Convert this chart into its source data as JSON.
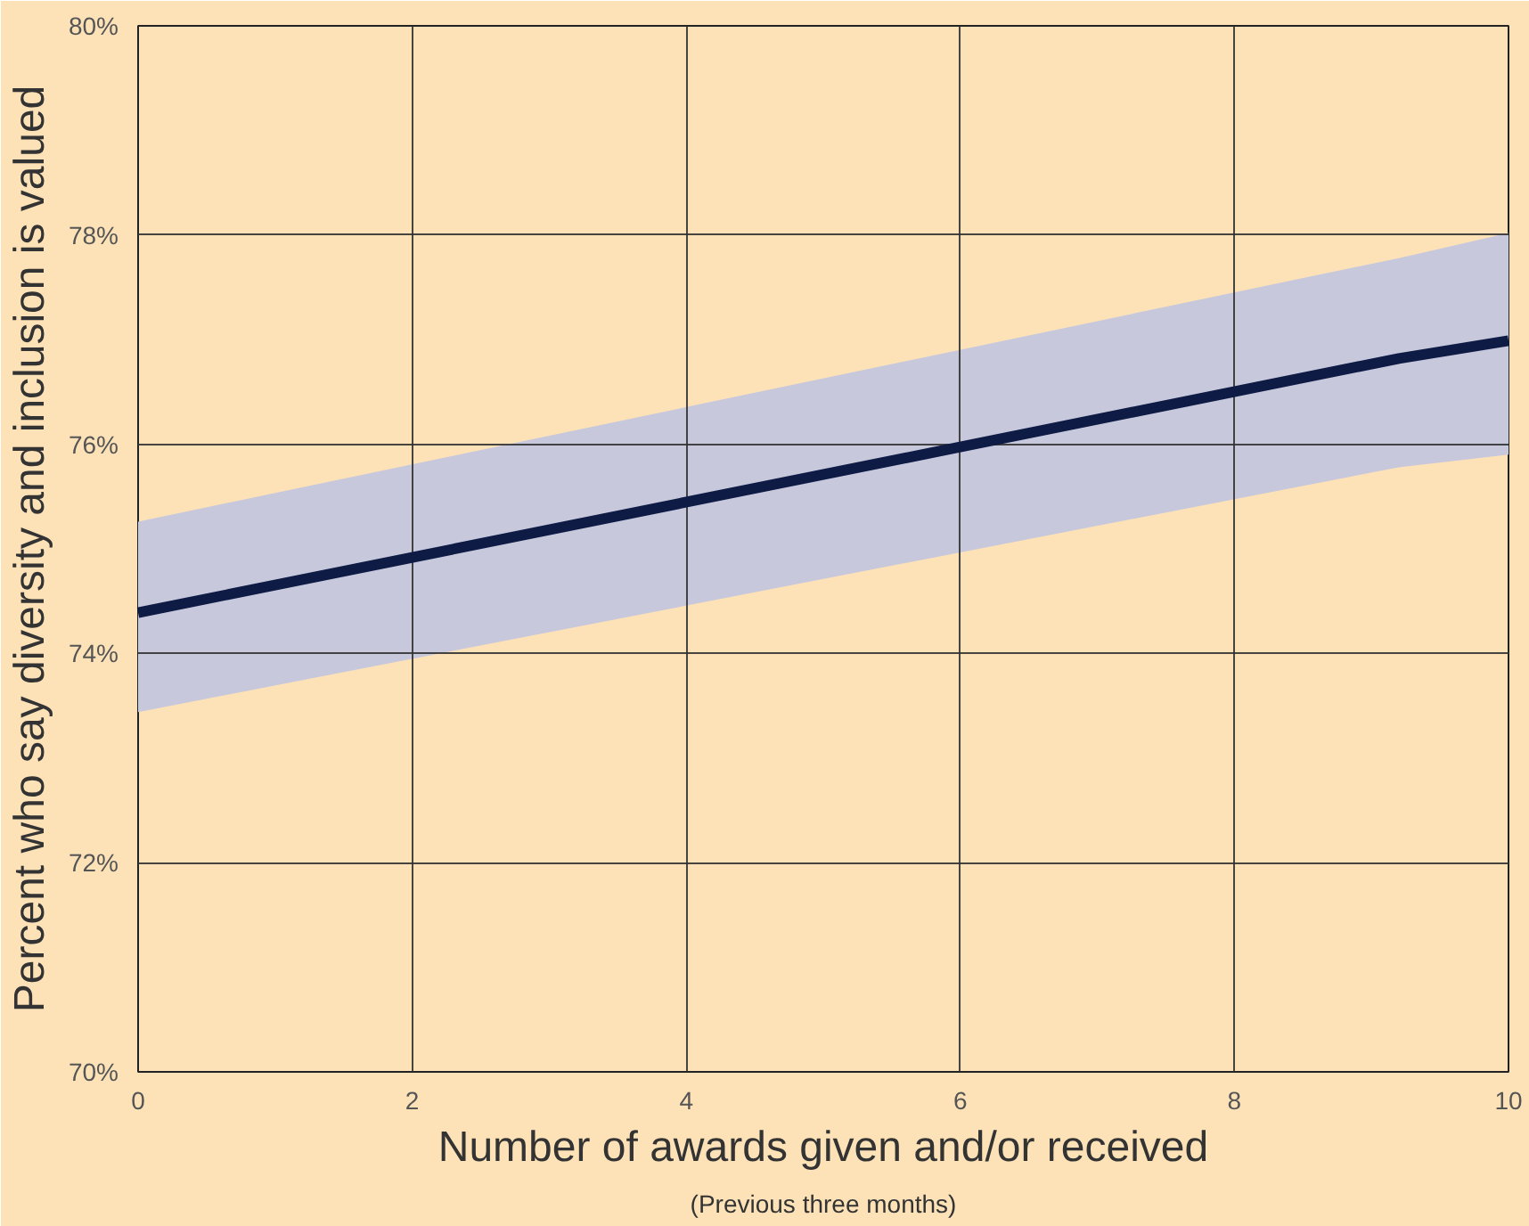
{
  "chart_data": {
    "type": "line",
    "xlabel": "Number of awards given and/or received",
    "ylabel": "Percent who say diversity and inclusion is valued",
    "annotations": [
      "(Previous three months)"
    ],
    "xlim": [
      0,
      10
    ],
    "ylim": [
      70,
      80
    ],
    "xticks": [
      0,
      2,
      4,
      6,
      8,
      10
    ],
    "yticks": [
      {
        "value": 70,
        "label": "70%"
      },
      {
        "value": 72,
        "label": "72%"
      },
      {
        "value": 74,
        "label": "74%"
      },
      {
        "value": 76,
        "label": "76%"
      },
      {
        "value": 78,
        "label": "78%"
      },
      {
        "value": 80,
        "label": "80%"
      }
    ],
    "grid": true,
    "marker": "none",
    "line_style": "solid",
    "series": [
      {
        "color": "#0d1b45",
        "x": [
          0,
          9.2,
          10
        ],
        "values": [
          74.39,
          76.82,
          76.99
        ],
        "lower": [
          73.44,
          75.78,
          75.9
        ],
        "upper": [
          75.26,
          77.78,
          78.02
        ]
      }
    ]
  }
}
